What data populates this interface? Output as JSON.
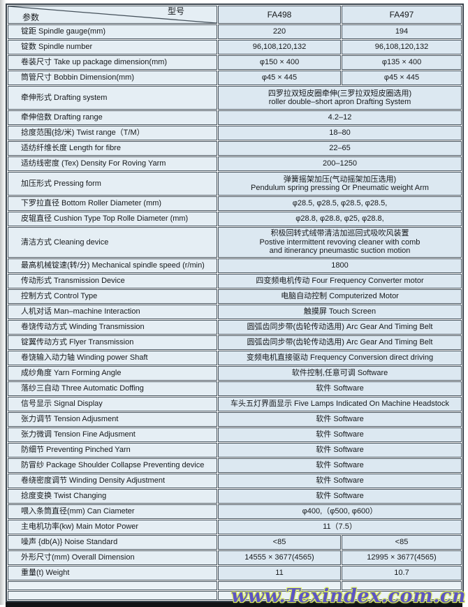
{
  "header": {
    "param_label": "参数",
    "model_label": "型号",
    "columns": [
      "FA498",
      "FA497"
    ]
  },
  "table": {
    "rows": [
      {
        "label": "锭距 Spindle gauge(mm)",
        "split": [
          "220",
          "194"
        ]
      },
      {
        "label": "锭数 Spindle number",
        "split": [
          "96,108,120,132",
          "96,108,120,132"
        ]
      },
      {
        "label": "卷装尺寸 Take up package dimension(mm)",
        "split": [
          "φ150 × 400",
          "φ135 × 400"
        ]
      },
      {
        "label": "筒管尺寸 Bobbin Dimension(mm)",
        "split": [
          "φ45 × 445",
          "φ45 × 445"
        ]
      },
      {
        "label": "牵伸形式 Drafting system",
        "span": [
          "四罗拉双短皮圈牵伸(三罗拉双短皮圈选用)",
          "roller double–short apron Drafting System"
        ]
      },
      {
        "label": "牵伸倍数 Drafting range",
        "span": [
          "4.2–12"
        ]
      },
      {
        "label": "捻度范围(捻/米) Twist range（T/M）",
        "span": [
          "18–80"
        ]
      },
      {
        "label": "适纺纤维长度 Length for fibre",
        "span": [
          "22–65"
        ]
      },
      {
        "label": "适纺线密度 (Tex) Density For Roving Yarm",
        "span": [
          "200–1250"
        ]
      },
      {
        "label": "加压形式 Pressing form",
        "span": [
          "弹簧摇架加压(气动摇架加压选用)",
          "Pendulum spring pressing Or Pneumatic weight Arm"
        ]
      },
      {
        "label": "下罗拉直径 Bottom Roller Diameter (mm)",
        "span": [
          "φ28.5, φ28.5, φ28.5, φ28.5,"
        ]
      },
      {
        "label": "皮辊直径 Cushion Type Top Rolle Diameter (mm)",
        "span": [
          "φ28.8, φ28.8, φ25, φ28.8,"
        ]
      },
      {
        "label": "清洁方式 Cleaning device",
        "span": [
          "积极回转式绒带清洁加巡回式吸吹风装置",
          "Postive intermittent revoving cleaner with comb",
          "and itinerancy pneumastic suction motion"
        ]
      },
      {
        "label": "最高机械锭速(转/分) Mechanical spindle speed (r/min)",
        "span": [
          "1800"
        ]
      },
      {
        "label": "传动形式 Transmission Device",
        "span": [
          "四变频电机传动 Four Frequency Converter motor"
        ]
      },
      {
        "label": "控制方式 Control Type",
        "span": [
          "电脑自动控制 Computerized Motor"
        ]
      },
      {
        "label": "人机对话 Man–machine Interaction",
        "span": [
          "触摸屏  Touch Screen"
        ]
      },
      {
        "label": "卷饶传动方式 Winding Transmission",
        "span": [
          "圆弧齿同步带(齿轮传动选用) Arc Gear And Timing Belt"
        ]
      },
      {
        "label": "锭翼传动方式 Flyer Transmission",
        "span": [
          "圆弧齿同步带(齿轮传动选用) Arc Gear And Timing Belt"
        ]
      },
      {
        "label": "卷饶输入动力轴 Winding power Shaft",
        "span": [
          "变频电机直接驱动 Frequency Conversion direct driving"
        ]
      },
      {
        "label": "成纱角度 Yarn Forming Angle",
        "span": [
          "软件控制,任意可调 Software"
        ]
      },
      {
        "label": "落纱三自动 Three Automatic Doffing",
        "span": [
          "软件 Software"
        ]
      },
      {
        "label": "信号显示 Signal Display",
        "span": [
          "车头五灯界面显示 Five Lamps Indicated On Machine Headstock"
        ]
      },
      {
        "label": "张力调节 Tension Adjusment",
        "span": [
          "软件 Software"
        ]
      },
      {
        "label": "张力微调 Tension Fine Adjusment",
        "span": [
          "软件 Software"
        ]
      },
      {
        "label": "防细节 Preventing Pinched Yarn",
        "span": [
          "软件 Software"
        ]
      },
      {
        "label": "防冒纱 Package Shoulder Collapse Preventing device",
        "span": [
          "软件 Software"
        ]
      },
      {
        "label": "卷绕密度调节 Winding Density  Adjustment",
        "span": [
          "软件 Software"
        ]
      },
      {
        "label": "捻度变换 Twist Changing",
        "span": [
          "软件 Software"
        ]
      },
      {
        "label": "喂入条筒直径(mm) Can Ciameter",
        "span": [
          "φ400,（φ500, φ600）"
        ]
      },
      {
        "label": "主电机功率(kw) Main Motor Power",
        "span": [
          "11（7.5）"
        ]
      },
      {
        "label": "噪声 {db(A)} Noise Standard",
        "split": [
          "<85",
          "<85"
        ]
      },
      {
        "label": "外形尺寸(mm) Overall Dimension",
        "split": [
          "14555 × 3677(4565)",
          "12995 × 3677(4565)"
        ]
      },
      {
        "label": "重量(t) Weight",
        "split": [
          "11",
          "10.7"
        ]
      },
      {
        "label": "",
        "split": [
          "",
          ""
        ]
      },
      {
        "label": "",
        "split": [
          "",
          ""
        ]
      }
    ]
  },
  "watermark": "www.Texindex.com.cn",
  "colors": {
    "cell_bg": "#dce8f1",
    "param_bg": "#e5eef4",
    "border": "#46525c",
    "bottom_bar": "#121416",
    "watermark_fill": "#5d55c4",
    "watermark_halo": "#d9ec5a"
  }
}
